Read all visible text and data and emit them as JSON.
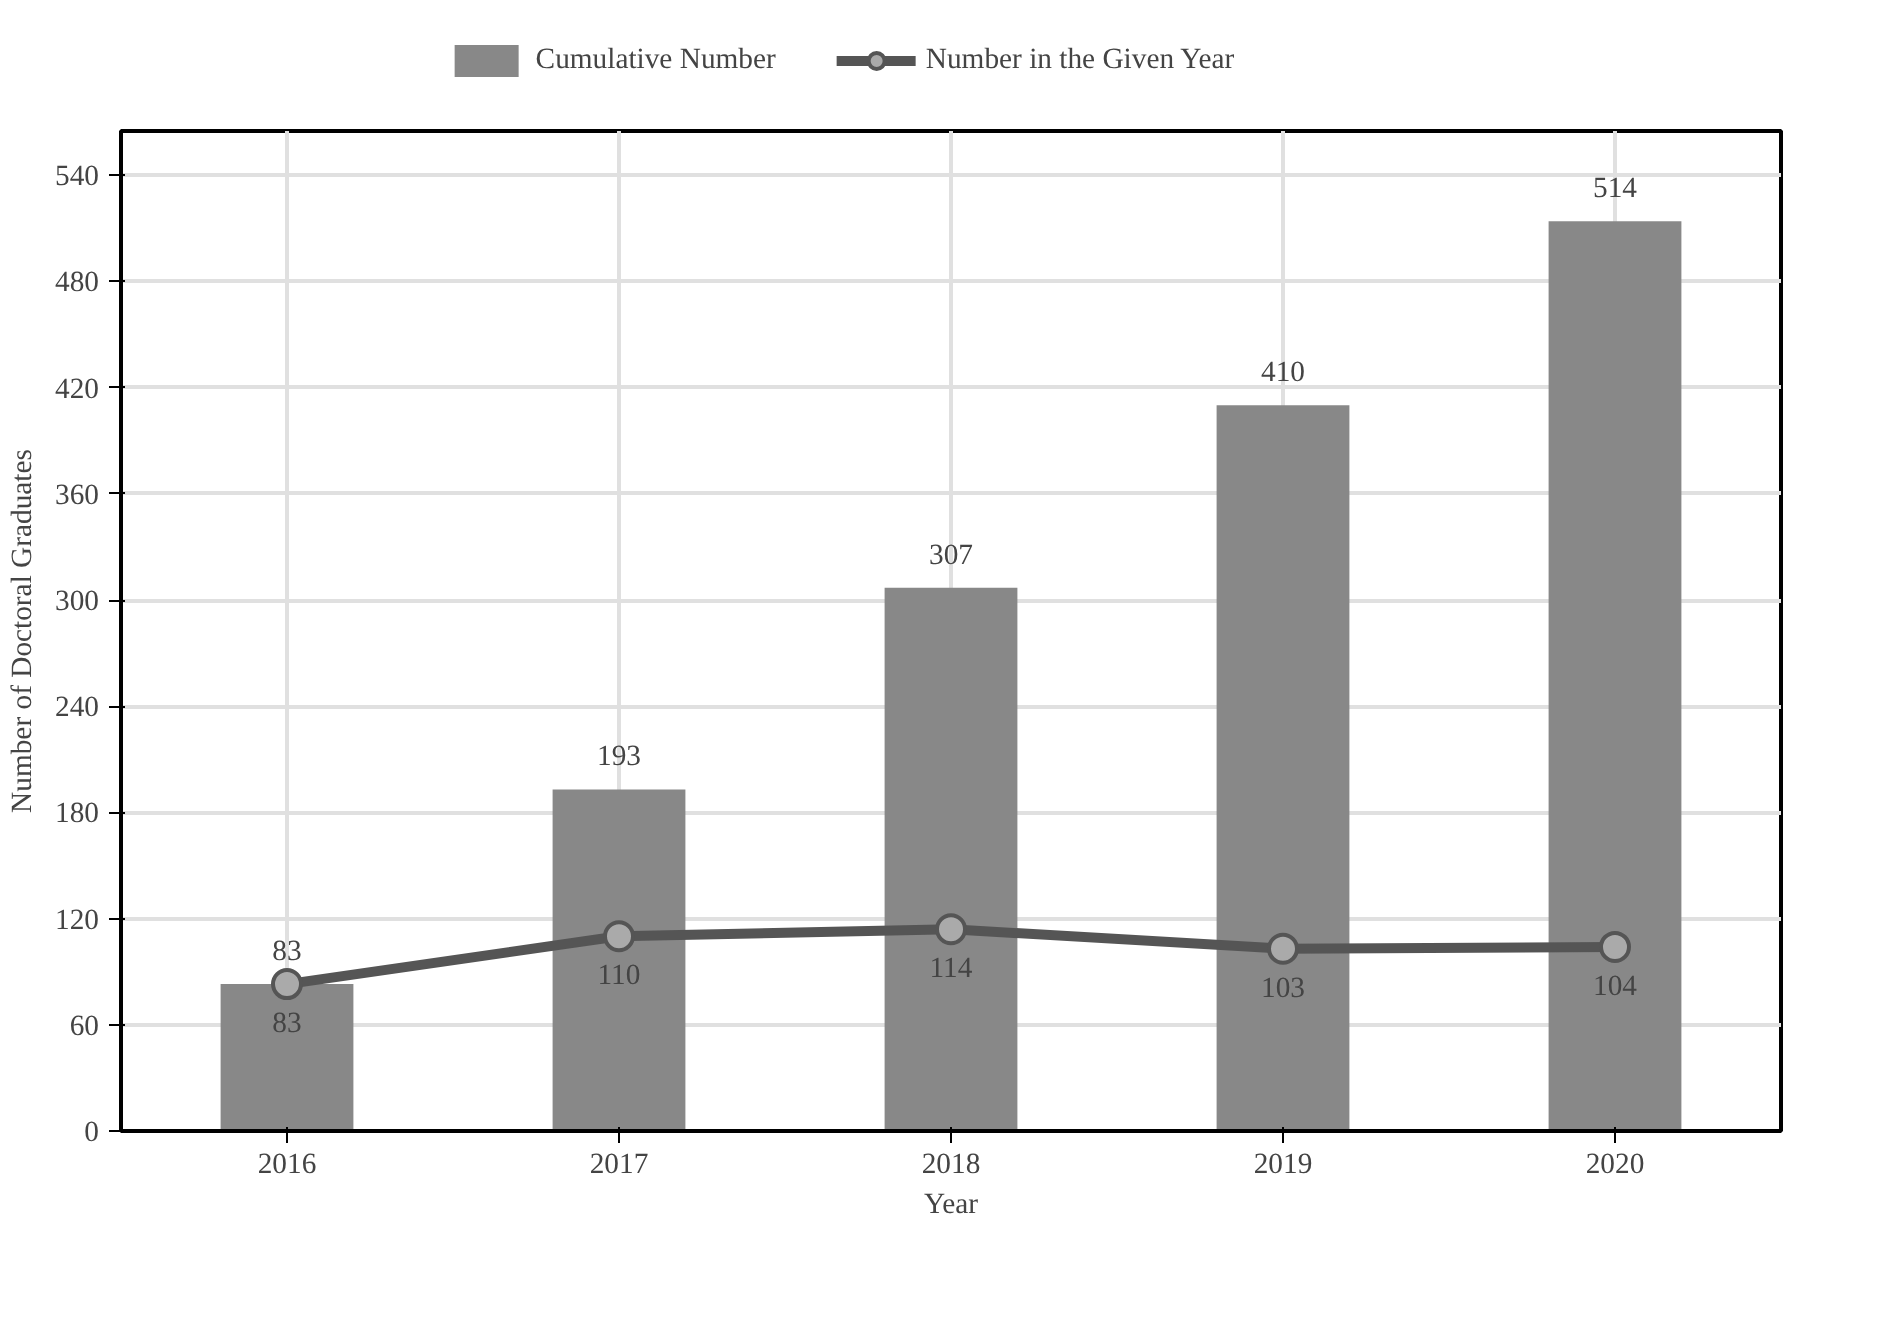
{
  "chart_data": {
    "type": "bar",
    "xlabel": "Year",
    "ylabel": "Number of Doctoral Graduates",
    "categories": [
      "2016",
      "2017",
      "2018",
      "2019",
      "2020"
    ],
    "series": [
      {
        "name": "Cumulative Number",
        "color": "#888888",
        "values": [
          83,
          193,
          307,
          410,
          514
        ]
      },
      {
        "name": "Number in the Given Year",
        "type": "line",
        "color": "#555555",
        "values": [
          83,
          110,
          114,
          103,
          104
        ]
      }
    ],
    "ylim": [
      0,
      565
    ],
    "yticks": [
      0,
      60,
      120,
      180,
      240,
      300,
      360,
      420,
      480,
      540
    ],
    "grid": true,
    "legend": "top",
    "marker": "circle",
    "line_style": "solid",
    "data_labels": true
  }
}
